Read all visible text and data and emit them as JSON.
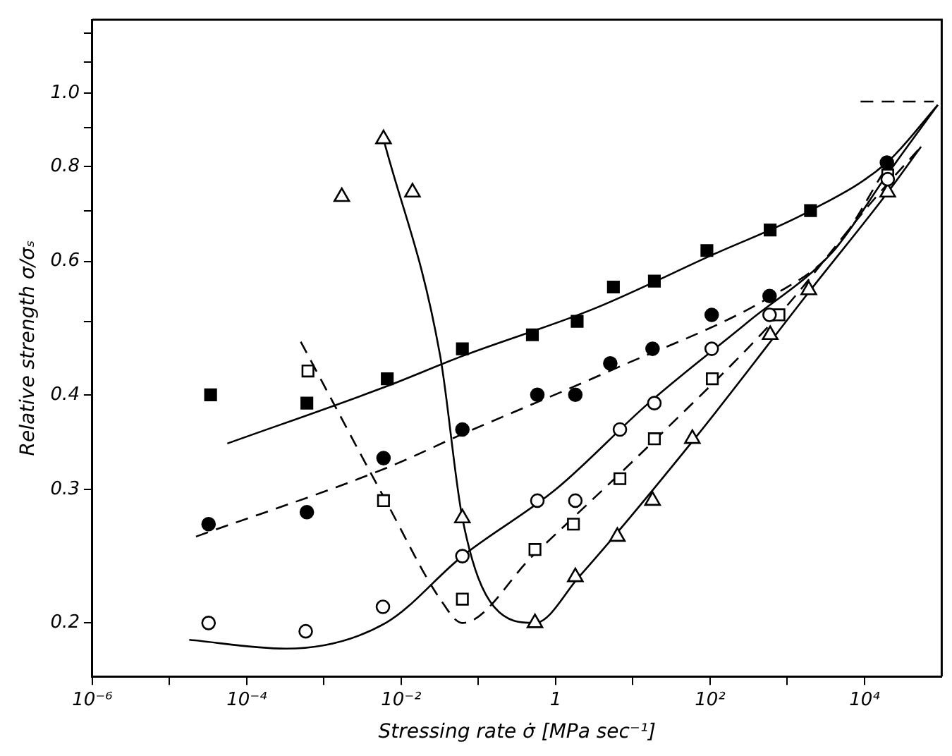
{
  "chart_data": {
    "type": "scatter",
    "xlabel": "Stressing rate σ̇ [MPa sec⁻¹]",
    "ylabel": "Relative strength σ/σₛ",
    "log": "xy",
    "grid": false,
    "legend": false,
    "xlim": [
      1e-06,
      100000.0
    ],
    "ylim": [
      0.17,
      1.25
    ],
    "xticks": [
      {
        "value": 1e-06,
        "label": "10⁻⁶"
      },
      {
        "value": 1e-05,
        "label": null
      },
      {
        "value": 0.0001,
        "label": "10⁻⁴"
      },
      {
        "value": 0.001,
        "label": null
      },
      {
        "value": 0.01,
        "label": "10⁻²"
      },
      {
        "value": 0.1,
        "label": null
      },
      {
        "value": 1,
        "label": "1"
      },
      {
        "value": 10,
        "label": null
      },
      {
        "value": 100,
        "label": "10²"
      },
      {
        "value": 1000,
        "label": null
      },
      {
        "value": 10000,
        "label": "10⁴"
      }
    ],
    "yticks": [
      0.2,
      0.3,
      0.4,
      {
        "value": 0.5,
        "label": null
      },
      0.6,
      {
        "value": 0.7,
        "label": null
      },
      0.8,
      {
        "value": 0.9,
        "label": null
      },
      {
        "value": 1.0,
        "label": "1.0"
      },
      {
        "value": 1.1,
        "label": null
      },
      {
        "value": 1.2,
        "label": null
      }
    ],
    "series": [
      {
        "marker": "square",
        "color": "#000000",
        "x": [
          3.4e-05,
          0.0006,
          0.0066,
          0.062,
          0.5,
          1.9,
          5.6,
          19,
          91,
          600,
          2000
        ],
        "values": [
          0.4,
          0.39,
          0.42,
          0.46,
          0.48,
          0.5,
          0.555,
          0.565,
          0.62,
          0.66,
          0.7
        ]
      },
      {
        "marker": "circle",
        "color": "#000000",
        "x": [
          3.2e-05,
          0.0006,
          0.0059,
          0.062,
          0.58,
          1.8,
          5.1,
          18,
          105,
          590,
          19500
        ],
        "values": [
          0.27,
          0.28,
          0.33,
          0.36,
          0.4,
          0.4,
          0.44,
          0.46,
          0.51,
          0.54,
          0.81
        ]
      },
      {
        "marker": "circle",
        "color": "#ffffff",
        "x": [
          3.2e-05,
          0.00058,
          0.0058,
          0.062,
          0.58,
          1.8,
          6.8,
          19,
          105,
          590,
          20000
        ],
        "values": [
          0.2,
          0.195,
          0.21,
          0.245,
          0.29,
          0.29,
          0.36,
          0.39,
          0.46,
          0.51,
          0.77
        ]
      },
      {
        "marker": "square",
        "color": "#ffffff",
        "x": [
          0.00062,
          0.0059,
          0.062,
          0.54,
          1.7,
          6.8,
          19,
          107,
          780,
          20000
        ],
        "values": [
          0.43,
          0.29,
          0.215,
          0.25,
          0.27,
          0.31,
          0.35,
          0.42,
          0.51,
          0.78
        ]
      },
      {
        "marker": "triangle",
        "color": "#ffffff",
        "x": [
          0.0017,
          0.0059,
          0.014,
          0.062,
          0.54,
          1.8,
          6.3,
          18,
          59,
          600,
          1900,
          20000
        ],
        "values": [
          0.73,
          0.87,
          0.74,
          0.275,
          0.2,
          0.23,
          0.26,
          0.29,
          0.35,
          0.48,
          0.55,
          0.74
        ]
      },
      {
        "type": "line",
        "marker": "none",
        "line_style": "solid",
        "color": "#000000",
        "x": [
          5.6e-05,
          0.0063,
          0.062,
          3.2,
          100,
          2000,
          19500,
          89000
        ],
        "values": [
          0.345,
          0.41,
          0.45,
          0.52,
          0.61,
          0.7,
          0.81,
          0.965
        ]
      },
      {
        "type": "line",
        "marker": "none",
        "line_style": "dashed",
        "color": "#000000",
        "x": [
          2.2e-05,
          0.0063,
          0.062,
          5,
          630,
          4000,
          19500
        ],
        "values": [
          0.26,
          0.32,
          0.355,
          0.43,
          0.54,
          0.62,
          0.8
        ]
      },
      {
        "type": "line",
        "marker": "none",
        "line_style": "solid",
        "color": "#000000",
        "x": [
          1.8e-05,
          0.00032,
          0.0063,
          0.062,
          1,
          16,
          316,
          4000,
          19500,
          89000
        ],
        "values": [
          0.19,
          0.185,
          0.2,
          0.245,
          0.3,
          0.39,
          0.5,
          0.62,
          0.78,
          0.965
        ]
      },
      {
        "type": "line",
        "marker": "none",
        "line_style": "dashed",
        "color": "#000000",
        "x": [
          0.0005,
          0.0063,
          0.032,
          0.062,
          0.5,
          20,
          780,
          12600,
          54000
        ],
        "values": [
          0.47,
          0.29,
          0.215,
          0.2,
          0.245,
          0.35,
          0.51,
          0.72,
          0.85
        ]
      },
      {
        "type": "line",
        "marker": "none",
        "line_style": "solid",
        "color": "#000000",
        "x": [
          0.0059,
          0.032,
          0.062,
          0.16,
          0.54,
          2,
          63,
          2000,
          20000,
          54000
        ],
        "values": [
          0.87,
          0.45,
          0.275,
          0.21,
          0.2,
          0.23,
          0.35,
          0.55,
          0.74,
          0.85
        ]
      },
      {
        "type": "line",
        "marker": "none",
        "line_style": "dashed",
        "color": "#000000",
        "x": [
          8900,
          79000
        ],
        "values": [
          0.975,
          0.975
        ]
      }
    ]
  }
}
